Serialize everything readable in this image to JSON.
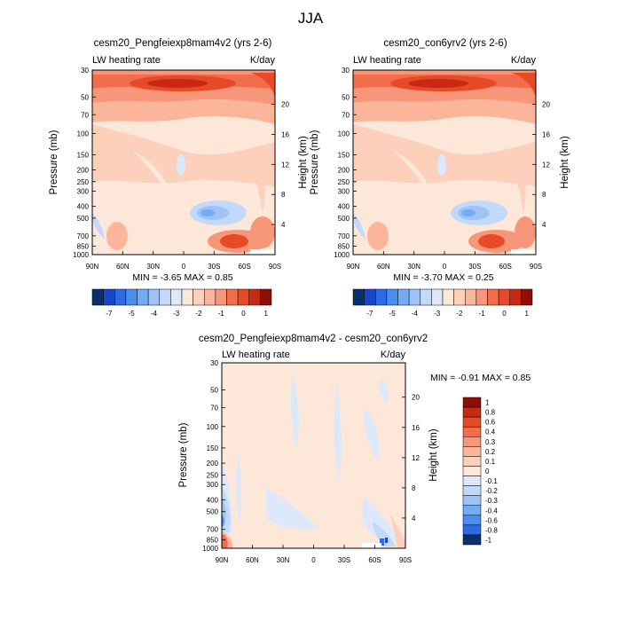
{
  "figure_title": "JJA",
  "colors": {
    "contour_scale": [
      "#08306b",
      "#1946c9",
      "#2f6ae6",
      "#4a8ef0",
      "#73abf5",
      "#9dc3f7",
      "#c2d9f9",
      "#dde9fb",
      "#fde7d9",
      "#fcd0ba",
      "#fbb59a",
      "#f8967a",
      "#f26d4b",
      "#e84a27",
      "#c52a12",
      "#8e0f06"
    ]
  },
  "chart_data": [
    {
      "type": "heatmap",
      "title": "cesm20_Pengfeiexp8mam4v2 (yrs 2-6)",
      "left_label": "LW heating rate",
      "right_label": "K/day",
      "ylabel": "Pressure (mb)",
      "y2label": "Height (km)",
      "x_ticks": [
        "90N",
        "60N",
        "30N",
        "0",
        "30S",
        "60S",
        "90S"
      ],
      "y_ticks": [
        "30",
        "50",
        "70",
        "100",
        "150",
        "200",
        "250",
        "300",
        "400",
        "500",
        "700",
        "850",
        "1000"
      ],
      "y2_ticks": [
        "20",
        "16",
        "12",
        "8",
        "4"
      ],
      "stats": "MIN = -3.65  MAX = 0.85",
      "colorbar_ticks": [
        "-7",
        "-5",
        "-4",
        "-3",
        "-2",
        "-1",
        "0",
        "1"
      ]
    },
    {
      "type": "heatmap",
      "title": "cesm20_con6yrv2 (yrs 2-6)",
      "left_label": "LW heating rate",
      "right_label": "K/day",
      "ylabel": "Pressure (mb)",
      "y2label": "Height (km)",
      "x_ticks": [
        "90N",
        "60N",
        "30N",
        "0",
        "30S",
        "60S",
        "90S"
      ],
      "y_ticks": [
        "30",
        "50",
        "70",
        "100",
        "150",
        "200",
        "250",
        "300",
        "400",
        "500",
        "700",
        "850",
        "1000"
      ],
      "y2_ticks": [
        "20",
        "16",
        "12",
        "8",
        "4"
      ],
      "stats": "MIN = -3.70  MAX = 0.25",
      "colorbar_ticks": [
        "-7",
        "-5",
        "-4",
        "-3",
        "-2",
        "-1",
        "0",
        "1"
      ]
    },
    {
      "type": "heatmap",
      "title": "cesm20_Pengfeiexp8mam4v2 - cesm20_con6yrv2",
      "left_label": "LW heating rate",
      "right_label": "K/day",
      "ylabel": "Pressure (mb)",
      "y2label": "Height (km)",
      "x_ticks": [
        "90N",
        "60N",
        "30N",
        "0",
        "30S",
        "60S",
        "90S"
      ],
      "y_ticks": [
        "30",
        "50",
        "70",
        "100",
        "150",
        "200",
        "250",
        "300",
        "400",
        "500",
        "700",
        "850",
        "1000"
      ],
      "y2_ticks": [
        "20",
        "16",
        "12",
        "8",
        "4"
      ],
      "stats": "MIN = -0.91  MAX = 0.85",
      "colorbar_ticks": [
        "1",
        "0.8",
        "0.6",
        "0.4",
        "0.3",
        "0.2",
        "0.1",
        "0",
        "-0.1",
        "-0.2",
        "-0.3",
        "-0.4",
        "-0.6",
        "-0.8",
        "-1"
      ]
    }
  ]
}
